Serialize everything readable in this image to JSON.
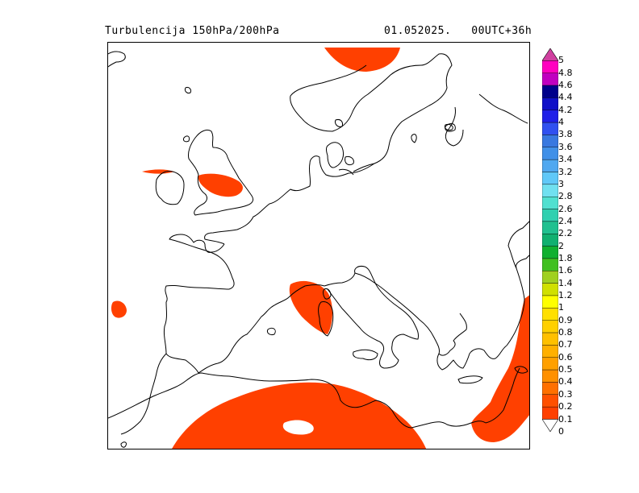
{
  "header": {
    "title": "Turbulencija 150hPa/200hPa",
    "datetime": "01.052025.",
    "forecast": "00UTC+36h"
  },
  "legend": {
    "levels": [
      "5",
      "4.8",
      "4.6",
      "4.4",
      "4.2",
      "4",
      "3.8",
      "3.6",
      "3.4",
      "3.2",
      "3",
      "2.8",
      "2.6",
      "2.4",
      "2.2",
      "2",
      "1.8",
      "1.6",
      "1.4",
      "1.2",
      "1",
      "0.9",
      "0.8",
      "0.7",
      "0.6",
      "0.5",
      "0.4",
      "0.3",
      "0.2",
      "0.1",
      "0"
    ],
    "colors": [
      "#d040a0",
      "#ff00c0",
      "#c000c0",
      "#00008b",
      "#1010c8",
      "#2020e8",
      "#3050f0",
      "#3878e0",
      "#4090e8",
      "#50a8f0",
      "#60c8f8",
      "#70e0f0",
      "#50e0d0",
      "#30d0b0",
      "#20c090",
      "#10b070",
      "#10b030",
      "#40c020",
      "#a0d020",
      "#d0e000",
      "#ffff00",
      "#ffe000",
      "#ffd000",
      "#ffc000",
      "#ffb000",
      "#ffa000",
      "#ff9000",
      "#ff7000",
      "#ff5000",
      "#ff4000"
    ],
    "turbulence_color": "#ff4000"
  }
}
